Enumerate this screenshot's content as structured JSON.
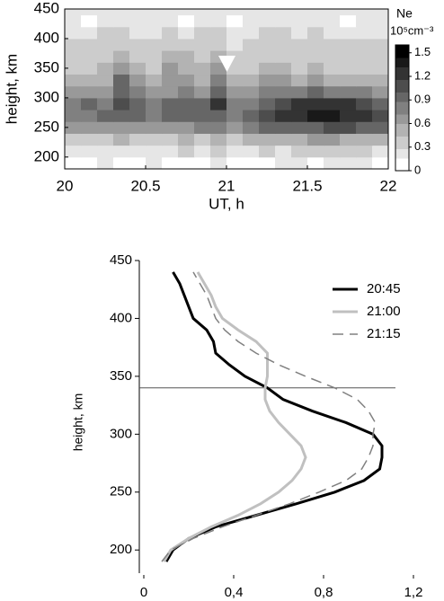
{
  "chart_data": [
    {
      "type": "heatmap",
      "xlabel": "UT, h",
      "ylabel": "height, km",
      "colorbar_title": "Ne",
      "colorbar_unit": "10⁵cm⁻³",
      "x": [
        20.05,
        20.15,
        20.25,
        20.35,
        20.45,
        20.55,
        20.65,
        20.75,
        20.85,
        20.95,
        21.05,
        21.15,
        21.25,
        21.35,
        21.45,
        21.55,
        21.65,
        21.75,
        21.85,
        21.95
      ],
      "y": [
        190,
        210,
        230,
        250,
        270,
        290,
        310,
        330,
        350,
        370,
        390,
        410,
        430,
        450
      ],
      "z": [
        [
          0.1,
          0.1,
          0.15,
          0.1,
          0.1,
          0.15,
          0.1,
          0.1,
          0.1,
          0.15,
          0.1,
          0.1,
          0.1,
          0.15,
          0.15,
          0.1,
          0.15,
          0.15,
          0.15,
          0.1
        ],
        [
          0.2,
          0.25,
          0.2,
          0.25,
          0.2,
          0.25,
          0.2,
          0.3,
          0.25,
          0.3,
          0.2,
          0.25,
          0.3,
          0.25,
          0.3,
          0.3,
          0.35,
          0.3,
          0.3,
          0.25
        ],
        [
          0.35,
          0.4,
          0.4,
          0.45,
          0.4,
          0.35,
          0.4,
          0.45,
          0.4,
          0.5,
          0.4,
          0.45,
          0.5,
          0.5,
          0.55,
          0.6,
          0.6,
          0.55,
          0.5,
          0.45
        ],
        [
          0.6,
          0.65,
          0.7,
          0.7,
          0.65,
          0.7,
          0.65,
          0.7,
          0.75,
          0.8,
          0.7,
          0.75,
          0.9,
          0.95,
          1.0,
          1.0,
          1.05,
          1.1,
          1.0,
          0.9
        ],
        [
          0.8,
          0.85,
          0.9,
          1.0,
          0.9,
          0.85,
          0.9,
          0.95,
          0.9,
          1.0,
          0.85,
          0.9,
          1.1,
          1.2,
          1.3,
          1.4,
          1.45,
          1.3,
          1.25,
          1.1
        ],
        [
          0.8,
          0.9,
          0.85,
          1.1,
          0.95,
          0.8,
          0.9,
          1.0,
          0.95,
          1.2,
          0.8,
          0.85,
          1.0,
          1.1,
          1.2,
          1.2,
          1.3,
          1.2,
          1.1,
          1.0
        ],
        [
          0.6,
          0.7,
          0.7,
          1.0,
          0.75,
          0.65,
          0.7,
          0.8,
          0.7,
          0.95,
          0.6,
          0.65,
          0.8,
          0.85,
          0.8,
          0.9,
          0.85,
          0.8,
          0.75,
          0.7
        ],
        [
          0.45,
          0.5,
          0.55,
          0.9,
          0.6,
          0.5,
          0.6,
          0.65,
          0.55,
          0.8,
          0.5,
          0.45,
          0.6,
          0.6,
          0.55,
          0.6,
          0.55,
          0.5,
          0.5,
          0.45
        ],
        [
          0.35,
          0.4,
          0.45,
          0.6,
          0.5,
          0.4,
          0.6,
          0.55,
          0.45,
          0.6,
          0.35,
          0.35,
          0.45,
          0.45,
          0.4,
          0.45,
          0.4,
          0.4,
          0.35,
          0.35
        ],
        [
          0.3,
          0.35,
          0.4,
          0.45,
          0.4,
          0.35,
          0.5,
          0.45,
          0.4,
          0.45,
          0.3,
          0.35,
          0.4,
          0.4,
          0.35,
          0.4,
          0.35,
          0.35,
          0.3,
          0.3
        ],
        [
          0.3,
          0.3,
          0.35,
          0.4,
          0.35,
          0.3,
          0.4,
          0.35,
          0.35,
          0.4,
          0.25,
          0.3,
          0.35,
          0.35,
          0.3,
          0.35,
          0.3,
          0.3,
          0.3,
          0.3
        ],
        [
          0.2,
          0.15,
          0.3,
          0.3,
          0.25,
          0.2,
          0.3,
          0.25,
          0.3,
          0.3,
          0.15,
          0.25,
          0.3,
          0.3,
          0.25,
          0.3,
          0.25,
          0.2,
          0.2,
          0.25
        ],
        [
          0.15,
          0.1,
          0.25,
          0.2,
          0.2,
          0.15,
          0.2,
          0.1,
          0.2,
          0.2,
          0.1,
          0.2,
          0.25,
          0.2,
          0.2,
          0.25,
          0.15,
          0.1,
          0.15,
          0.2
        ],
        [
          0.2,
          0.2,
          0.25,
          0.2,
          0.15,
          0.2,
          0.25,
          0.2,
          0.2,
          0.15,
          0.2,
          0.2,
          0.25,
          0.2,
          0.2,
          0.2,
          0.2,
          0.15,
          0.2,
          0.2
        ]
      ],
      "xlim": [
        20,
        22
      ],
      "xticks": [
        20,
        20.5,
        21,
        21.5,
        22
      ],
      "ylim": [
        180,
        450
      ],
      "yticks": [
        200,
        250,
        300,
        350,
        400,
        450
      ],
      "zlim": [
        0,
        1.6
      ],
      "zticks": [
        0,
        0.3,
        0.6,
        0.9,
        1.2,
        1.5
      ],
      "colormap": "gray_r"
    },
    {
      "type": "line",
      "orientation": "horizontal",
      "ylabel": "height, km",
      "y": [
        190,
        200,
        210,
        220,
        230,
        240,
        250,
        260,
        270,
        280,
        290,
        300,
        310,
        320,
        330,
        340,
        350,
        360,
        370,
        380,
        390,
        400,
        410,
        420,
        430,
        440
      ],
      "series": [
        {
          "name": "20:45",
          "color": "#000000",
          "linestyle": "solid",
          "values": [
            0.1,
            0.13,
            0.2,
            0.32,
            0.5,
            0.68,
            0.85,
            0.98,
            1.05,
            1.06,
            1.06,
            1.02,
            0.9,
            0.75,
            0.62,
            0.55,
            0.45,
            0.38,
            0.32,
            0.31,
            0.28,
            0.22,
            0.2,
            0.18,
            0.16,
            0.13
          ]
        },
        {
          "name": "21:00",
          "color": "#c0c0c0",
          "linestyle": "solid",
          "values": [
            0.09,
            0.12,
            0.2,
            0.3,
            0.42,
            0.52,
            0.6,
            0.66,
            0.7,
            0.72,
            0.7,
            0.65,
            0.6,
            0.56,
            0.54,
            0.54,
            0.55,
            0.55,
            0.55,
            0.5,
            0.42,
            0.35,
            0.32,
            0.3,
            0.27,
            0.24
          ]
        },
        {
          "name": "21:15",
          "color": "#808080",
          "linestyle": "dashed",
          "values": [
            0.08,
            0.12,
            0.22,
            0.35,
            0.5,
            0.65,
            0.78,
            0.9,
            0.97,
            1.0,
            1.02,
            1.02,
            1.03,
            1.0,
            0.95,
            0.85,
            0.72,
            0.6,
            0.5,
            0.42,
            0.36,
            0.32,
            0.3,
            0.28,
            0.25,
            0.22
          ]
        }
      ],
      "xlim": [
        0,
        1.2
      ],
      "xticks": [
        0,
        {
          "value": 0.4,
          "label": "0,4"
        },
        {
          "value": 0.8,
          "label": "0,8"
        },
        {
          "value": 1.2,
          "label": "1,2"
        }
      ],
      "ylim": [
        180,
        450
      ],
      "yticks": [
        200,
        250,
        300,
        350,
        400,
        450
      ],
      "reference_line": 340,
      "legend": "upper right"
    }
  ]
}
